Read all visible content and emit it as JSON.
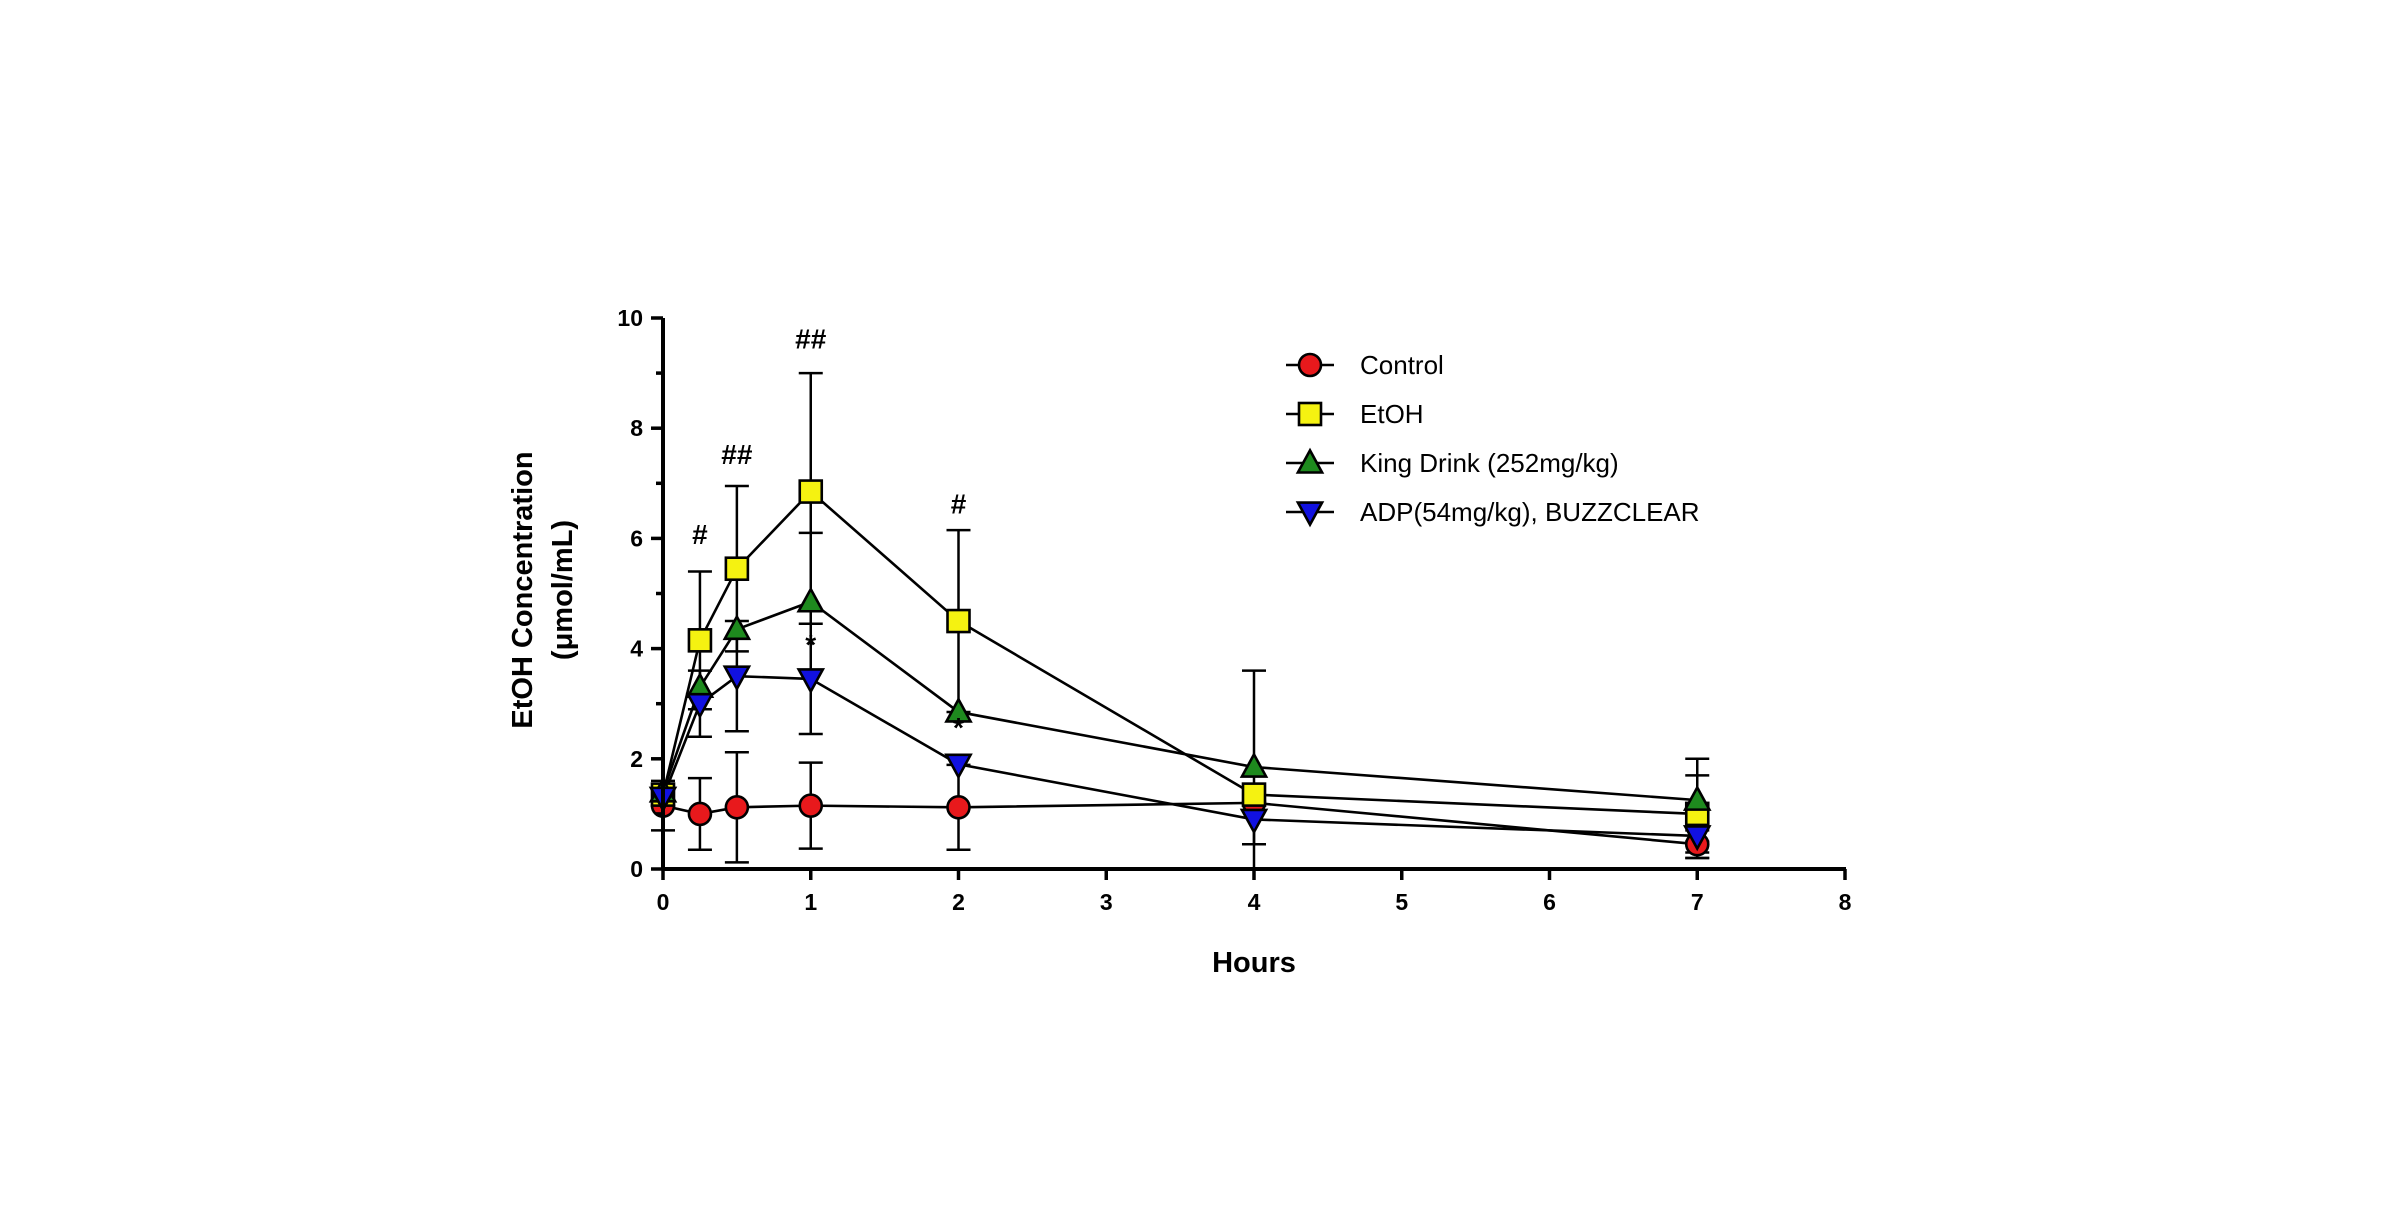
{
  "chart_data": {
    "type": "line",
    "title": "",
    "xlabel": "Hours",
    "ylabel_lines": [
      "EtOH Concentration",
      "(μmol/mL)"
    ],
    "xlim": [
      0,
      8
    ],
    "ylim": [
      0,
      10
    ],
    "x_ticks": [
      "0",
      "1",
      "2",
      "3",
      "4",
      "5",
      "6",
      "7",
      "8"
    ],
    "y_ticks": [
      "0",
      "2",
      "4",
      "6",
      "8",
      "10"
    ],
    "grid": false,
    "legend_position": "top-right",
    "x": [
      0,
      0.25,
      0.5,
      1,
      2,
      4,
      7
    ],
    "series": [
      {
        "name": "Control",
        "marker": "circle",
        "color": "#e8191c",
        "values": [
          1.15,
          1.0,
          1.12,
          1.15,
          1.12,
          1.2,
          0.45
        ],
        "errors": [
          0.45,
          0.65,
          1.0,
          0.78,
          0.77,
          0.0,
          0.25
        ]
      },
      {
        "name": "EtOH",
        "marker": "square",
        "color": "#f5f211",
        "values": [
          1.35,
          4.15,
          5.45,
          6.85,
          4.5,
          1.35,
          1.0
        ],
        "errors": [
          0.0,
          1.25,
          1.5,
          2.15,
          1.65,
          2.25,
          0.7
        ]
      },
      {
        "name": "King Drink (252mg/kg)",
        "marker": "triangle-up",
        "color": "#1e8a1e",
        "values": [
          1.4,
          3.3,
          4.35,
          4.85,
          2.85,
          1.85,
          1.25
        ],
        "errors": [
          0.0,
          0.0,
          0.0,
          1.25,
          0.0,
          0.0,
          0.75
        ]
      },
      {
        "name": "ADP(54mg/kg), BUZZCLEAR",
        "marker": "triangle-down",
        "color": "#1111e0",
        "values": [
          1.3,
          3.0,
          3.5,
          3.45,
          1.9,
          0.9,
          0.6
        ],
        "errors": [
          0.0,
          0.6,
          1.0,
          1.0,
          0.0,
          0.45,
          0.4
        ]
      }
    ],
    "annotations": [
      {
        "text": "#",
        "x": 0.25,
        "y": 5.9
      },
      {
        "text": "##",
        "x": 0.5,
        "y": 7.35
      },
      {
        "text": "##",
        "x": 1,
        "y": 9.45
      },
      {
        "text": "#",
        "x": 2,
        "y": 6.45
      },
      {
        "text": "*",
        "x": 1,
        "y": 3.9
      },
      {
        "text": "*",
        "x": 2,
        "y": 2.4
      }
    ]
  }
}
